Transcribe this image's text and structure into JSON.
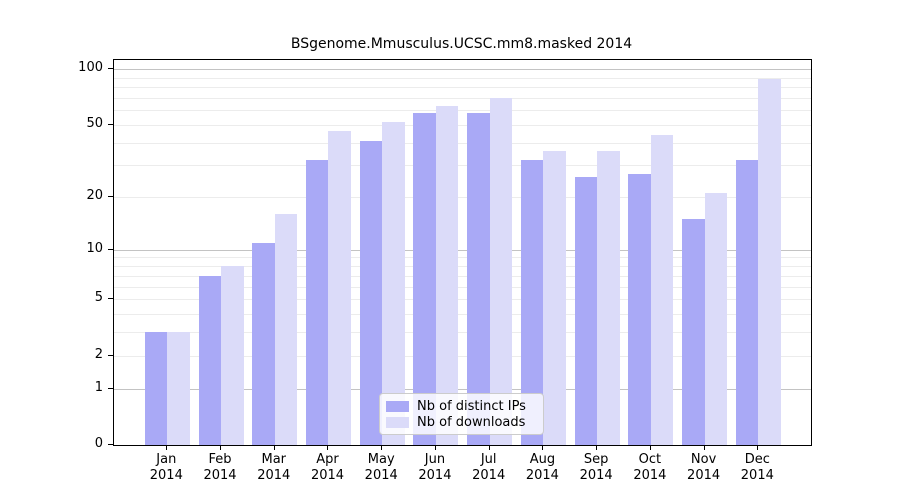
{
  "chart_data": {
    "type": "bar",
    "title": "BSgenome.Mmusculus.UCSC.mm8.masked 2014",
    "scale": "log1p",
    "categories": [
      "Jan",
      "Feb",
      "Mar",
      "Apr",
      "May",
      "Jun",
      "Jul",
      "Aug",
      "Sep",
      "Oct",
      "Nov",
      "Dec"
    ],
    "year_label": "2014",
    "series": [
      {
        "name": "Nb of distinct IPs",
        "color": "#a9a9f6",
        "values": [
          3,
          7,
          11,
          32,
          41,
          58,
          58,
          32,
          26,
          27,
          15,
          32
        ]
      },
      {
        "name": "Nb of downloads",
        "color": "#dbdbf9",
        "values": [
          3,
          8,
          16,
          46,
          52,
          63,
          70,
          36,
          36,
          44,
          21,
          88
        ]
      }
    ],
    "yticks": [
      0,
      1,
      2,
      5,
      10,
      20,
      50,
      100
    ],
    "gridlines": {
      "major": [
        1,
        10,
        100
      ],
      "minor": [
        2,
        3,
        4,
        5,
        6,
        7,
        8,
        9,
        20,
        30,
        40,
        50,
        60,
        70,
        80,
        90
      ]
    },
    "ylim": [
      0,
      112
    ],
    "legend_position": "bottom-center",
    "grid": "on"
  },
  "colors": {
    "distinct_ips": "#a9a9f6",
    "downloads": "#dbdbf9",
    "major_grid": "#c3c3c3",
    "minor_grid": "#ececec",
    "axis": "#000000",
    "legend_border": "#cccccc"
  }
}
